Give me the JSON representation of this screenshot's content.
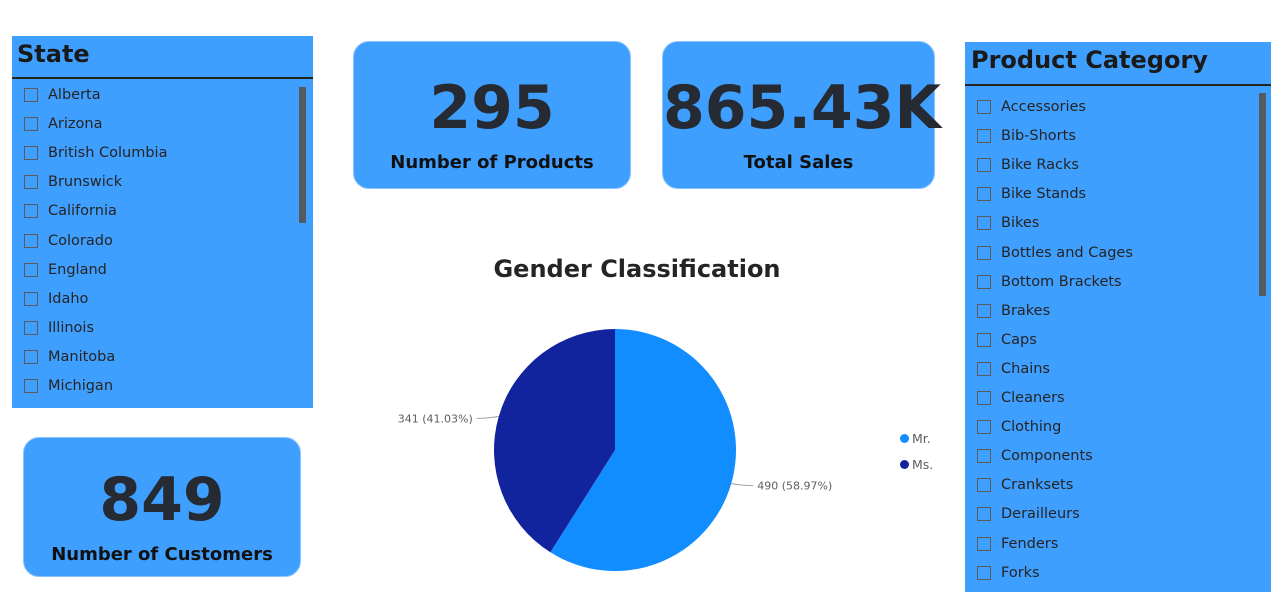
{
  "state_slicer": {
    "title": "State",
    "items": [
      "Alberta",
      "Arizona",
      "British Columbia",
      "Brunswick",
      "California",
      "Colorado",
      "England",
      "Idaho",
      "Illinois",
      "Manitoba",
      "Michigan"
    ]
  },
  "product_slicer": {
    "title": "Product Category",
    "items": [
      "Accessories",
      "Bib-Shorts",
      "Bike Racks",
      "Bike Stands",
      "Bikes",
      "Bottles and Cages",
      "Bottom Brackets",
      "Brakes",
      "Caps",
      "Chains",
      "Cleaners",
      "Clothing",
      "Components",
      "Cranksets",
      "Derailleurs",
      "Fenders",
      "Forks"
    ]
  },
  "cards": {
    "products": {
      "value": "295",
      "label": "Number of Products"
    },
    "sales": {
      "value": "865.43K",
      "label": "Total Sales"
    },
    "customers": {
      "value": "849",
      "label": "Number of Customers"
    }
  },
  "chart_data": {
    "type": "pie",
    "title": "Gender Classification",
    "slices": [
      {
        "label": "Mr.",
        "value": 490,
        "percent": 58.97,
        "data_label": "490 (58.97%)",
        "color": "#118dff"
      },
      {
        "label": "Ms.",
        "value": 341,
        "percent": 41.03,
        "data_label": "341 (41.03%)",
        "color": "#12239e"
      }
    ],
    "legend_position": "right"
  },
  "colors": {
    "panel": "#3f9fff",
    "accent_mr": "#118dff",
    "accent_ms": "#12239e"
  }
}
